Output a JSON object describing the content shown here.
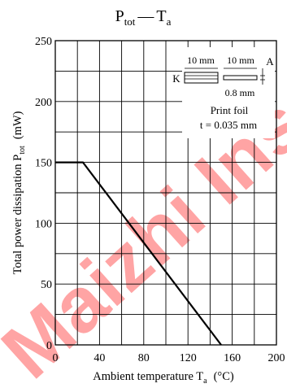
{
  "chart_data": {
    "type": "line",
    "title": {
      "main": "P",
      "main_sub": "tot",
      "dash": "—",
      "var": "T",
      "var_sub": "a"
    },
    "xlabel": {
      "text": "Ambient temperature  T",
      "sub": "a",
      "unit": "(°C)"
    },
    "ylabel": {
      "text": "Total power dissipation  P",
      "sub": "tot",
      "unit": "(mW)"
    },
    "xlim": [
      0,
      200
    ],
    "ylim": [
      0,
      250
    ],
    "x_ticks": [
      0,
      40,
      80,
      120,
      160,
      200
    ],
    "y_ticks": [
      0,
      50,
      100,
      150,
      200,
      250
    ],
    "x_grid_step": 20,
    "y_grid_step": 25,
    "grid": true,
    "series": [
      {
        "x": [
          0,
          25,
          150
        ],
        "y": [
          150,
          150,
          0
        ]
      }
    ],
    "annotations": {
      "dim_left": "10 mm",
      "dim_right": "10 mm",
      "label_k": "K",
      "label_a": "A",
      "dim_gap": "0.8 mm",
      "note_line1": "Print foil",
      "note_line2": "t = 0.035 mm"
    },
    "watermark": "Maizhi Ins"
  },
  "colors": {
    "line": "#000000",
    "grid": "#000000",
    "watermark": "#ff5a5a"
  }
}
